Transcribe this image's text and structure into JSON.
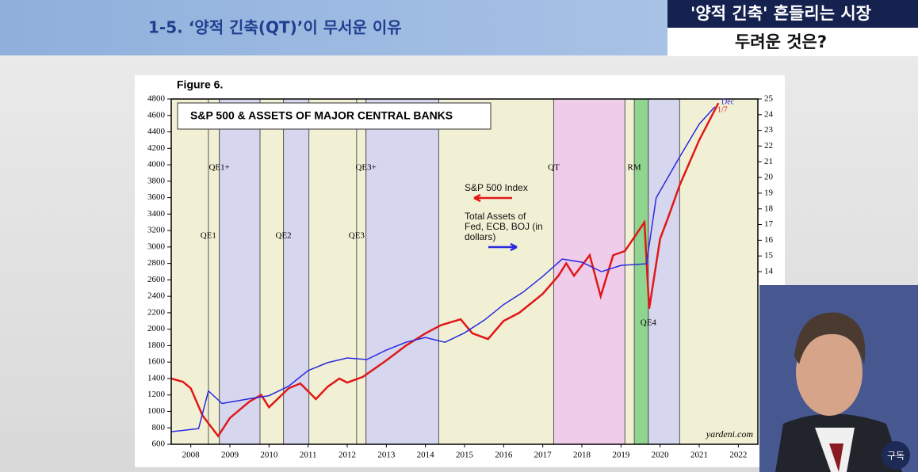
{
  "header": {
    "title": "1-5. ‘양적 긴축(QT)’이 무서운 이유",
    "box_line1": "'양적 긴축' 흔들리는 시장",
    "box_line2": "두려운 것은?",
    "subscribe": "구독"
  },
  "chart_data": {
    "type": "line",
    "figure_label": "Figure 6.",
    "title": "S&P 500 & ASSETS OF MAJOR CENTRAL BANKS",
    "source": "yardeni.com",
    "xlim": [
      2008,
      2023
    ],
    "xticks": [
      {
        "value": 2008.5,
        "label": "2008"
      },
      {
        "value": 2009.5,
        "label": "2009"
      },
      {
        "value": 2010.5,
        "label": "2010"
      },
      {
        "value": 2011.5,
        "label": "2011"
      },
      {
        "value": 2012.5,
        "label": "2012"
      },
      {
        "value": 2013.5,
        "label": "2013"
      },
      {
        "value": 2014.5,
        "label": "2014"
      },
      {
        "value": 2015.5,
        "label": "2015"
      },
      {
        "value": 2016.5,
        "label": "2016"
      },
      {
        "value": 2017.5,
        "label": "2017"
      },
      {
        "value": 2018.5,
        "label": "2018"
      },
      {
        "value": 2019.5,
        "label": "2019"
      },
      {
        "value": 2020.5,
        "label": "2020"
      },
      {
        "value": 2021.5,
        "label": "2021"
      },
      {
        "value": 2022.5,
        "label": "2022"
      }
    ],
    "ylim": [
      600,
      4800
    ],
    "yticks": [
      600,
      800,
      1000,
      1200,
      1400,
      1600,
      1800,
      2000,
      2200,
      2400,
      2600,
      2800,
      3000,
      3200,
      3400,
      3600,
      3800,
      4000,
      4200,
      4400,
      4600,
      4800
    ],
    "y2lim": [
      3,
      25
    ],
    "y2ticks": [
      14,
      15,
      16,
      17,
      18,
      19,
      20,
      21,
      22,
      23,
      24,
      25
    ],
    "regions": [
      {
        "label": "QE1",
        "start": 2008.95,
        "end": 2009.23,
        "color": "#f2f0d4"
      },
      {
        "label": "QE1+",
        "start": 2009.23,
        "end": 2010.27,
        "color": "#d6d6ee"
      },
      {
        "label": "QE2",
        "start": 2010.87,
        "end": 2011.52,
        "color": "#d6d6ee"
      },
      {
        "label": "QE3",
        "start": 2012.74,
        "end": 2012.98,
        "color": "#f2f0d4"
      },
      {
        "label": "QE3+",
        "start": 2012.98,
        "end": 2014.84,
        "color": "#d6d6ee"
      },
      {
        "label": "QT",
        "start": 2017.78,
        "end": 2019.6,
        "color": "#efcdea"
      },
      {
        "label": "RM",
        "start": 2019.84,
        "end": 2020.2,
        "color": "#8fd48f"
      },
      {
        "label": "QE4",
        "start": 2020.2,
        "end": 2021.0,
        "color": "#d6d6ee"
      }
    ],
    "series": [
      {
        "name": "S&P 500 Index",
        "color": "#e01818",
        "x": [
          2008.0,
          2008.3,
          2008.5,
          2008.8,
          2009.2,
          2009.5,
          2010.0,
          2010.3,
          2010.5,
          2011.0,
          2011.3,
          2011.7,
          2012.0,
          2012.3,
          2012.5,
          2012.9,
          2013.5,
          2014.0,
          2014.5,
          2014.9,
          2015.4,
          2015.7,
          2016.1,
          2016.5,
          2016.9,
          2017.5,
          2017.9,
          2018.1,
          2018.3,
          2018.7,
          2018.98,
          2019.3,
          2019.6,
          2020.1,
          2020.22,
          2020.5,
          2020.7,
          2021.0,
          2021.5,
          2021.99
        ],
        "values": [
          1400,
          1360,
          1280,
          950,
          700,
          920,
          1120,
          1200,
          1050,
          1280,
          1340,
          1150,
          1300,
          1400,
          1350,
          1420,
          1620,
          1800,
          1950,
          2050,
          2120,
          1950,
          1880,
          2100,
          2200,
          2430,
          2650,
          2800,
          2650,
          2900,
          2400,
          2900,
          2950,
          3300,
          2250,
          3100,
          3350,
          3750,
          4300,
          4750
        ]
      },
      {
        "name": "Total Assets of Fed, ECB, BOJ (in dollars)",
        "color": "#2a2ae0",
        "axis": "y2",
        "x": [
          2008.0,
          2008.7,
          2008.95,
          2009.3,
          2010.0,
          2010.5,
          2011.0,
          2011.5,
          2012.0,
          2012.5,
          2013.0,
          2013.5,
          2014.0,
          2014.5,
          2015.0,
          2015.5,
          2016.0,
          2016.5,
          2017.0,
          2017.5,
          2018.0,
          2018.5,
          2019.0,
          2019.5,
          2020.15,
          2020.4,
          2021.0,
          2021.5,
          2021.9
        ],
        "values": [
          3.8,
          4.0,
          6.4,
          5.6,
          5.9,
          6.1,
          6.7,
          7.7,
          8.2,
          8.5,
          8.4,
          9.0,
          9.5,
          9.8,
          9.5,
          10.1,
          10.9,
          11.9,
          12.7,
          13.7,
          14.8,
          14.6,
          14.0,
          14.4,
          14.5,
          18.7,
          21.3,
          23.4,
          24.5
        ]
      }
    ],
    "annotations": [
      {
        "text": "Dec",
        "color": "#2a2ae0"
      },
      {
        "text": "1/7",
        "color": "#e01818"
      }
    ]
  }
}
